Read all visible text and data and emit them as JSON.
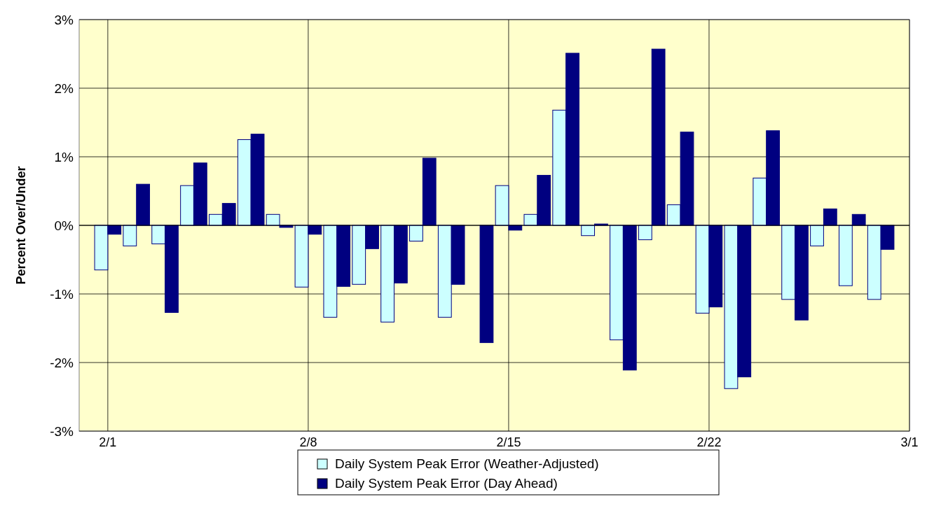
{
  "chart_data": {
    "type": "bar",
    "ylabel": "Percent Over/Under",
    "x": [
      "--02-01",
      "--02-02",
      "--02-03",
      "--02-04",
      "--02-05",
      "--02-06",
      "--02-07",
      "--02-08",
      "--02-09",
      "--02-10",
      "--02-11",
      "--02-12",
      "--02-13",
      "--02-14",
      "--02-15",
      "--02-16",
      "--02-17",
      "--02-18",
      "--02-19",
      "--02-20",
      "--02-21",
      "--02-22",
      "--02-23",
      "--02-24",
      "--02-25",
      "--02-26",
      "--02-27",
      "--02-28"
    ],
    "series": [
      {
        "name": "Daily System Peak Error (Weather-Adjusted)",
        "color": "#ccffff",
        "values": [
          -0.65,
          -0.3,
          -0.27,
          0.58,
          0.16,
          1.25,
          0.16,
          -0.9,
          -1.34,
          -0.86,
          -1.41,
          -0.23,
          -1.34,
          0,
          0.58,
          0.16,
          1.68,
          -0.15,
          -1.67,
          -0.21,
          0.3,
          -1.28,
          -2.38,
          0.69,
          -1.08,
          -0.3,
          -0.88,
          -1.08
        ]
      },
      {
        "name": "Daily System Peak Error (Day Ahead)",
        "color": "#000080",
        "values": [
          -0.13,
          0.6,
          -1.27,
          0.91,
          0.32,
          1.33,
          -0.03,
          -0.13,
          -0.89,
          -0.34,
          -0.84,
          0.98,
          -0.86,
          -1.71,
          -0.07,
          0.73,
          2.51,
          0.02,
          -2.11,
          2.57,
          1.36,
          -1.19,
          -2.21,
          1.38,
          -1.38,
          0.24,
          0.16,
          -0.35
        ]
      }
    ],
    "xlim": [
      "--01-31",
      "--03-01"
    ],
    "xticks": [
      {
        "value": "--02-01",
        "label": "2/1"
      },
      {
        "value": "--02-08",
        "label": "2/8"
      },
      {
        "value": "--02-15",
        "label": "2/15"
      },
      {
        "value": "--02-22",
        "label": "2/22"
      },
      {
        "value": "--03-01",
        "label": "3/1"
      }
    ],
    "ylim": [
      -3,
      3
    ],
    "yticks": [
      {
        "value": -3,
        "label": "-3%"
      },
      {
        "value": -2,
        "label": "-2%"
      },
      {
        "value": -1,
        "label": "-1%"
      },
      {
        "value": 0,
        "label": "0%"
      },
      {
        "value": 1,
        "label": "1%"
      },
      {
        "value": 2,
        "label": "2%"
      },
      {
        "value": 3,
        "label": "3%"
      }
    ],
    "grid": true,
    "legend": "bottom"
  }
}
